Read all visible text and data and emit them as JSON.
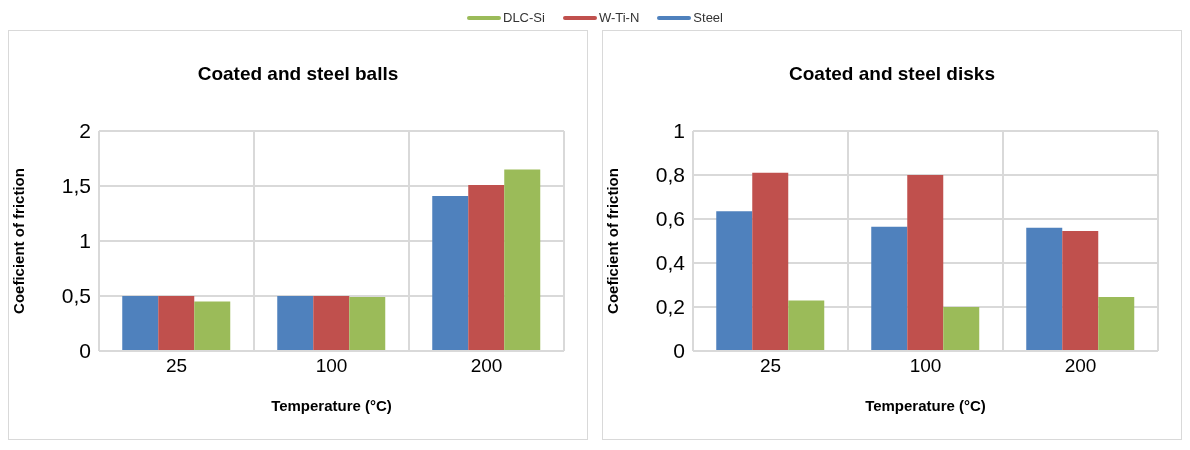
{
  "chart_data": [
    {
      "type": "bar",
      "title": "Coated and steel balls",
      "xlabel": "Temperature (°C)",
      "ylabel": "Coeficient of friction",
      "categories": [
        "25",
        "100",
        "200"
      ],
      "series": [
        {
          "name": "Steel",
          "color": "#4f81bd",
          "values": [
            0.5,
            0.5,
            1.41
          ]
        },
        {
          "name": "W-Ti-N",
          "color": "#c0504d",
          "values": [
            0.5,
            0.5,
            1.51
          ]
        },
        {
          "name": "DLC-Si",
          "color": "#9bbb59",
          "values": [
            0.45,
            0.49,
            1.65
          ]
        }
      ],
      "ylim": [
        0,
        2
      ],
      "yticks": [
        0,
        {
          "value": 0.5,
          "label": "0,5"
        },
        1,
        {
          "value": 1.5,
          "label": "1,5"
        },
        2
      ],
      "grid": true,
      "legend": "top"
    },
    {
      "type": "bar",
      "title": "Coated and steel disks",
      "xlabel": "Temperature (°C)",
      "ylabel": "Coeficient of friction",
      "categories": [
        "25",
        "100",
        "200"
      ],
      "series": [
        {
          "color": "#4f81bd",
          "values": [
            0.635,
            0.565,
            0.56
          ]
        },
        {
          "color": "#c0504d",
          "values": [
            0.81,
            0.8,
            0.545
          ]
        },
        {
          "color": "#9bbb59",
          "values": [
            0.23,
            0.2,
            0.245
          ]
        }
      ],
      "ylim": [
        0,
        1
      ],
      "yticks": [
        0,
        {
          "value": 0.2,
          "label": "0,2"
        },
        {
          "value": 0.4,
          "label": "0,4"
        },
        {
          "value": 0.6,
          "label": "0,6"
        },
        {
          "value": 0.8,
          "label": "0,8"
        },
        1
      ],
      "grid": true
    }
  ]
}
